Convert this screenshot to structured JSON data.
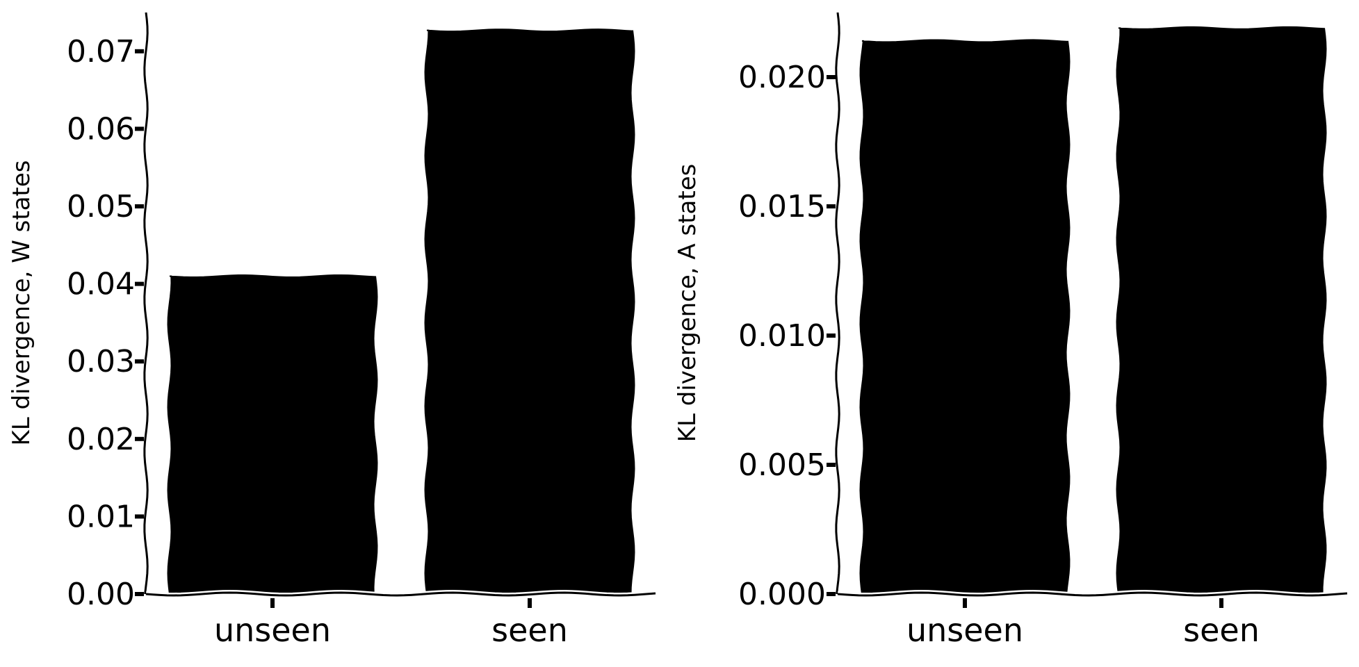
{
  "chart_data": [
    {
      "type": "bar",
      "categories": [
        "unseen",
        "seen"
      ],
      "values": [
        0.041,
        0.0727
      ],
      "ylabel": "KL divergence, W states",
      "xlabel": "",
      "ylim": [
        0,
        0.075
      ],
      "yticks": [
        0.0,
        0.01,
        0.02,
        0.03,
        0.04,
        0.05,
        0.06,
        0.07
      ],
      "ytick_labels": [
        "0.00",
        "0.01",
        "0.02",
        "0.03",
        "0.04",
        "0.05",
        "0.06",
        "0.07"
      ],
      "bar_color": "#000000",
      "grid": false,
      "style": "xkcd"
    },
    {
      "type": "bar",
      "categories": [
        "unseen",
        "seen"
      ],
      "values": [
        0.0214,
        0.0219
      ],
      "ylabel": "KL divergence, A states",
      "xlabel": "",
      "ylim": [
        0,
        0.0225
      ],
      "yticks": [
        0.0,
        0.005,
        0.01,
        0.015,
        0.02
      ],
      "ytick_labels": [
        "0.000",
        "0.005",
        "0.010",
        "0.015",
        "0.020"
      ],
      "bar_color": "#000000",
      "grid": false,
      "style": "xkcd"
    }
  ]
}
